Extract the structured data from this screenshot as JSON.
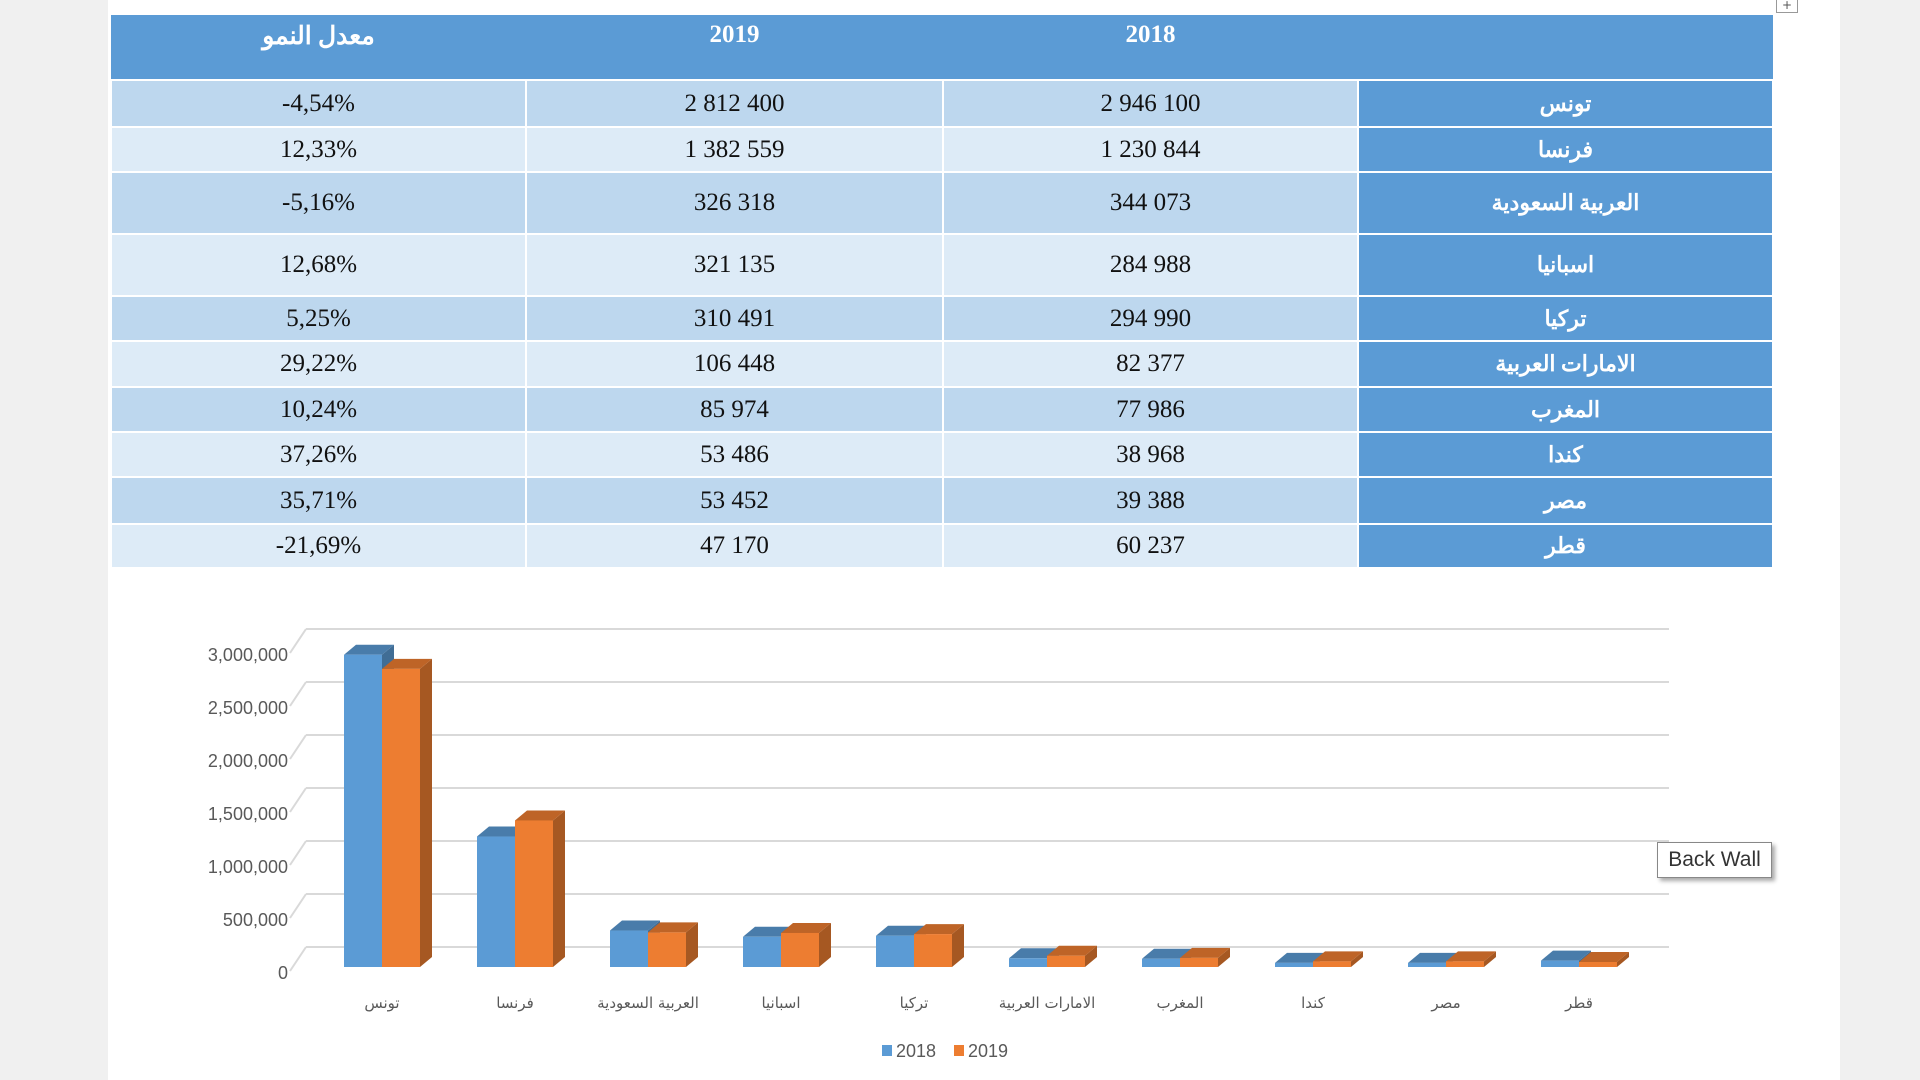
{
  "table": {
    "headers": [
      "",
      "2018",
      "2019",
      "معدل النمو"
    ],
    "rows": [
      {
        "country": "تونس",
        "y2018": "2 946 100",
        "y2019": "2 812 400",
        "growth": "-4,54%"
      },
      {
        "country": "فرنسا",
        "y2018": "1 230 844",
        "y2019": "1 382 559",
        "growth": "12,33%"
      },
      {
        "country": "العربية السعودية",
        "y2018": "344 073",
        "y2019": "326 318",
        "growth": "-5,16%"
      },
      {
        "country": "اسبانيا",
        "y2018": "284 988",
        "y2019": "321 135",
        "growth": "12,68%"
      },
      {
        "country": "تركيا",
        "y2018": "294 990",
        "y2019": "310 491",
        "growth": "5,25%"
      },
      {
        "country": "الامارات العربية",
        "y2018": "82 377",
        "y2019": "106 448",
        "growth": "29,22%"
      },
      {
        "country": "المغرب",
        "y2018": "77 986",
        "y2019": "85 974",
        "growth": "10,24%"
      },
      {
        "country": "كندا",
        "y2018": "38 968",
        "y2019": "53 486",
        "growth": "37,26%"
      },
      {
        "country": "مصر",
        "y2018": "39 388",
        "y2019": "53 452",
        "growth": "35,71%"
      },
      {
        "country": "قطر",
        "y2018": "60 237",
        "y2019": "47 170",
        "growth": "-21,69%"
      }
    ]
  },
  "tooltip": "Back Wall",
  "chart_data": {
    "type": "bar",
    "style": "3d-clustered-column",
    "categories": [
      "تونس",
      "فرنسا",
      "العربية السعودية",
      "اسبانيا",
      "تركيا",
      "الامارات العربية",
      "المغرب",
      "كندا",
      "مصر",
      "قطر"
    ],
    "series": [
      {
        "name": "2018",
        "color": "#5b9bd5",
        "values": [
          2946100,
          1230844,
          344073,
          284988,
          294990,
          82377,
          77986,
          38968,
          39388,
          60237
        ]
      },
      {
        "name": "2019",
        "color": "#ed7d31",
        "values": [
          2812400,
          1382559,
          326318,
          321135,
          310491,
          106448,
          85974,
          53486,
          53452,
          47170
        ]
      }
    ],
    "yticks": [
      "0",
      "500,000",
      "1,000,000",
      "1,500,000",
      "2,000,000",
      "2,500,000",
      "3,000,000"
    ],
    "ylim": [
      0,
      3000000
    ],
    "grid": true,
    "legend": "bottom"
  }
}
